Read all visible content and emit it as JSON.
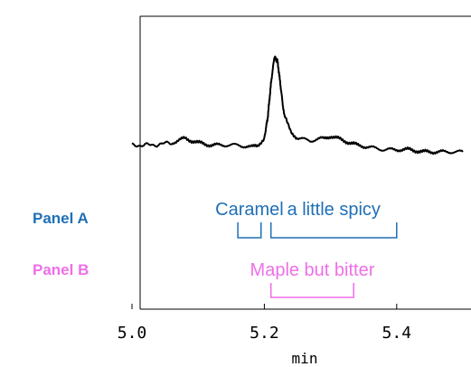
{
  "panels": {
    "a_label": "Panel A",
    "b_label": "Panel B",
    "a_color": "#1f6fb5",
    "b_color": "#ee6fe8"
  },
  "chart_data": {
    "type": "line",
    "xlabel": "min",
    "xlim": [
      5.0,
      5.5
    ],
    "ylim": [
      0,
      1
    ],
    "x_ticks": [
      5.0,
      5.2,
      5.4
    ],
    "x_tick_labels": [
      "5.0",
      "5.2",
      "5.4"
    ],
    "series": [
      {
        "color": "#000000",
        "x": [
          5.0,
          5.03,
          5.06,
          5.08,
          5.1,
          5.12,
          5.14,
          5.16,
          5.18,
          5.19,
          5.2,
          5.205,
          5.21,
          5.215,
          5.22,
          5.225,
          5.23,
          5.24,
          5.25,
          5.27,
          5.29,
          5.3,
          5.32,
          5.34,
          5.36,
          5.38,
          5.4,
          5.42,
          5.44,
          5.46,
          5.48,
          5.5
        ],
        "y": [
          0.43,
          0.43,
          0.44,
          0.46,
          0.44,
          0.43,
          0.43,
          0.43,
          0.42,
          0.43,
          0.46,
          0.55,
          0.7,
          0.82,
          0.8,
          0.68,
          0.56,
          0.49,
          0.46,
          0.45,
          0.46,
          0.47,
          0.45,
          0.43,
          0.42,
          0.41,
          0.41,
          0.41,
          0.4,
          0.4,
          0.4,
          0.4
        ]
      }
    ],
    "annotations": [
      {
        "text": "Caramel",
        "panel": "A",
        "color": "#1f6fb5",
        "range": [
          5.16,
          5.195
        ]
      },
      {
        "text": "a little spicy",
        "panel": "A",
        "color": "#1f6fb5",
        "range": [
          5.21,
          5.4
        ]
      },
      {
        "text": "Maple but bitter",
        "panel": "B",
        "color": "#ee6fe8",
        "range": [
          5.21,
          5.335
        ]
      }
    ]
  }
}
